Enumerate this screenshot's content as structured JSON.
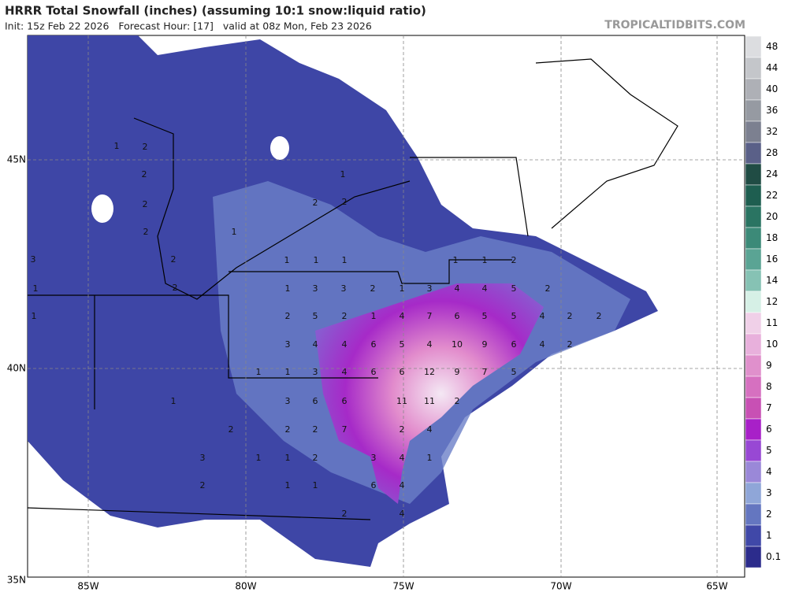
{
  "header": {
    "title": "HRRR Total Snowfall (inches) (assuming 10:1 snow:liquid ratio)",
    "subtitle": "Init: 15z Feb 22 2026   Forecast Hour: [17]   valid at 08z Mon, Feb 23 2026",
    "source": "TROPICALTIDBITS.COM"
  },
  "axes": {
    "latitudes": [
      "45N",
      "40N",
      "35N"
    ],
    "longitudes": [
      "85W",
      "80W",
      "75W",
      "70W",
      "65W"
    ]
  },
  "colorbar": {
    "levels": [
      48,
      44,
      40,
      36,
      32,
      28,
      24,
      22,
      20,
      18,
      16,
      14,
      12,
      11,
      10,
      9,
      8,
      7,
      6,
      5,
      4,
      3,
      2,
      1,
      0.1
    ],
    "colors": [
      "#dcdde0",
      "#c4c6ca",
      "#aeb0b6",
      "#969aa2",
      "#7c8090",
      "#5a6088",
      "#204c44",
      "#1e5e50",
      "#2a7462",
      "#3c8a78",
      "#5aa494",
      "#86c2b4",
      "#d6f0e6",
      "#f0d0e8",
      "#e8b0dc",
      "#e090cc",
      "#d670c0",
      "#c850b4",
      "#a820c8",
      "#9848d4",
      "#9a88d8",
      "#8fa6d8",
      "#6476c0",
      "#4048a8",
      "#2c2c8c"
    ]
  },
  "map_labels": [
    1,
    2,
    2,
    2,
    2,
    3,
    2,
    2,
    1,
    1,
    1,
    1,
    2,
    2,
    1,
    1,
    1,
    1,
    3,
    3,
    2,
    1,
    3,
    4,
    4,
    5,
    1,
    1,
    2,
    2,
    2,
    5,
    2,
    1,
    4,
    7,
    6,
    5,
    5,
    4,
    2,
    2,
    3,
    4,
    4,
    6,
    5,
    4,
    10,
    9,
    6,
    4,
    2,
    1,
    1,
    3,
    4,
    6,
    6,
    12,
    9,
    7,
    5,
    1,
    3,
    6,
    6,
    11,
    11,
    2,
    2,
    2,
    2,
    7,
    2,
    4,
    3,
    1,
    1,
    2,
    3,
    4,
    1,
    2,
    1,
    1,
    6,
    4,
    2,
    4
  ]
}
